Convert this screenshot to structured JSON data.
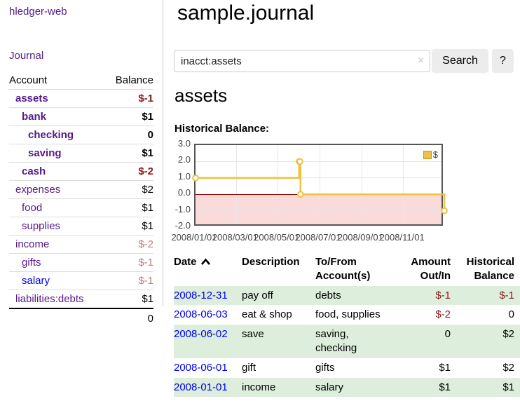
{
  "app": {
    "title": "hledger-web",
    "nav_journal": "Journal"
  },
  "colors": {
    "link_visited_purple": "#551a8b",
    "link_blue": "#0000ee",
    "negative_red": "#8b1a1a",
    "negative_dim_red": "#c07c7c",
    "row_stripe_green": "#ddeedd",
    "series_yellow": "#edc240",
    "negative_region_pink": "#fbdada",
    "zero_line_red": "#990000"
  },
  "sidebar": {
    "header": {
      "account": "Account",
      "balance": "Balance"
    },
    "accounts": [
      {
        "name": "assets",
        "balance": "$-1"
      },
      {
        "name": "bank",
        "balance": "$1"
      },
      {
        "name": "checking",
        "balance": "0"
      },
      {
        "name": "saving",
        "balance": "$1"
      },
      {
        "name": "cash",
        "balance": "$-2"
      },
      {
        "name": "expenses",
        "balance": "$2"
      },
      {
        "name": "food",
        "balance": "$1"
      },
      {
        "name": "supplies",
        "balance": "$1"
      },
      {
        "name": "income",
        "balance": "$-2"
      },
      {
        "name": "gifts",
        "balance": "$-1"
      },
      {
        "name": "salary",
        "balance": "$-1"
      },
      {
        "name": "liabilities:debts",
        "balance": "$1"
      }
    ],
    "total": "0"
  },
  "main": {
    "title": "sample.journal",
    "search": {
      "query": "inacct:assets",
      "clear_icon": "×",
      "search_label": "Search",
      "help_label": "?"
    },
    "account_heading": "assets",
    "chart_label": "Historical Balance:"
  },
  "chart_data": {
    "type": "line",
    "title": "Historical Balance",
    "step": true,
    "series": [
      {
        "name": "$",
        "color": "#edc240",
        "points": [
          [
            "2008-01-01",
            1
          ],
          [
            "2008-06-01",
            2
          ],
          [
            "2008-06-02",
            2
          ],
          [
            "2008-06-03",
            0
          ],
          [
            "2008-12-31",
            -1
          ]
        ]
      }
    ],
    "xrange": [
      "2008-01-01",
      "2008-12-31"
    ],
    "ylim": [
      -2,
      3
    ],
    "yticks": [
      [
        3,
        "3.0"
      ],
      [
        2,
        "2.0"
      ],
      [
        1,
        "1.0"
      ],
      [
        0,
        "0.0"
      ],
      [
        -1,
        "-1.0"
      ],
      [
        -2,
        "-2.0"
      ]
    ],
    "xticks": [
      [
        "2008-01-01",
        "2008/01/01"
      ],
      [
        "2008-03-01",
        "2008/03/01"
      ],
      [
        "2008-05-01",
        "2008/05/01"
      ],
      [
        "2008-07-01",
        "2008/07/01"
      ],
      [
        "2008-09-01",
        "2008/09/01"
      ],
      [
        "2008-11-01",
        "2008/11/01"
      ]
    ],
    "grid": true,
    "legend_position": "top-right",
    "negative_region_color": "#fbdada",
    "zero_line_color": "#990000"
  },
  "journal": {
    "headers": {
      "date": "Date",
      "description": "Description",
      "accounts": "To/From Account(s)",
      "amount": "Amount Out/In",
      "balance": "Historical Balance"
    },
    "rows": [
      {
        "date": "2008-12-31",
        "description": "pay off",
        "accounts": "debts",
        "amount": "$-1",
        "balance": "$-1"
      },
      {
        "date": "2008-06-03",
        "description": "eat & shop",
        "accounts": "food, supplies",
        "amount": "$-2",
        "balance": "0"
      },
      {
        "date": "2008-06-02",
        "description": "save",
        "accounts": "saving, checking",
        "amount": "0",
        "balance": "$2"
      },
      {
        "date": "2008-06-01",
        "description": "gift",
        "accounts": "gifts",
        "amount": "$1",
        "balance": "$2"
      },
      {
        "date": "2008-01-01",
        "description": "income",
        "accounts": "salary",
        "amount": "$1",
        "balance": "$1"
      }
    ]
  }
}
